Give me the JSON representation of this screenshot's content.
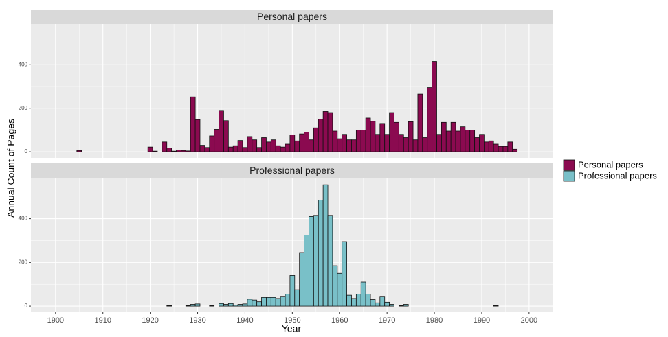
{
  "chart_data": {
    "type": "bar",
    "facet": true,
    "xlabel": "Year",
    "ylabel": "Annual Count of Pages",
    "x": [
      1905,
      1906,
      1907,
      1908,
      1909,
      1910,
      1911,
      1912,
      1913,
      1914,
      1915,
      1916,
      1917,
      1918,
      1919,
      1920,
      1921,
      1922,
      1923,
      1924,
      1925,
      1926,
      1927,
      1928,
      1929,
      1930,
      1931,
      1932,
      1933,
      1934,
      1935,
      1936,
      1937,
      1938,
      1939,
      1940,
      1941,
      1942,
      1943,
      1944,
      1945,
      1946,
      1947,
      1948,
      1949,
      1950,
      1951,
      1952,
      1953,
      1954,
      1955,
      1956,
      1957,
      1958,
      1959,
      1960,
      1961,
      1962,
      1963,
      1964,
      1965,
      1966,
      1967,
      1968,
      1969,
      1970,
      1971,
      1972,
      1973,
      1974,
      1975,
      1976,
      1977,
      1978,
      1979,
      1980,
      1981,
      1982,
      1983,
      1984,
      1985,
      1986,
      1987,
      1988,
      1989,
      1990,
      1991,
      1992,
      1993,
      1994,
      1995,
      1996,
      1997
    ],
    "series": [
      {
        "name": "Personal papers",
        "color": "#8b0a50",
        "values": [
          6,
          null,
          null,
          null,
          null,
          null,
          null,
          null,
          null,
          null,
          null,
          null,
          null,
          null,
          null,
          22,
          3,
          null,
          45,
          18,
          3,
          8,
          6,
          4,
          252,
          148,
          30,
          20,
          73,
          103,
          190,
          143,
          22,
          28,
          52,
          20,
          70,
          55,
          20,
          65,
          45,
          55,
          28,
          22,
          35,
          78,
          50,
          82,
          90,
          55,
          110,
          150,
          185,
          180,
          95,
          60,
          80,
          55,
          55,
          100,
          100,
          155,
          140,
          80,
          130,
          80,
          180,
          135,
          80,
          65,
          138,
          55,
          265,
          65,
          295,
          415,
          80,
          135,
          95,
          135,
          95,
          115,
          100,
          100,
          65,
          80,
          45,
          50,
          35,
          25,
          25,
          45,
          12
        ]
      },
      {
        "name": "Professional papers",
        "color": "#79c0c8",
        "values": [
          null,
          null,
          null,
          null,
          null,
          null,
          null,
          null,
          null,
          null,
          null,
          null,
          null,
          null,
          null,
          null,
          null,
          null,
          null,
          2,
          null,
          null,
          null,
          2,
          8,
          10,
          null,
          null,
          2,
          null,
          12,
          8,
          12,
          5,
          8,
          10,
          32,
          28,
          20,
          40,
          40,
          40,
          35,
          45,
          55,
          140,
          75,
          245,
          325,
          410,
          415,
          485,
          555,
          415,
          185,
          150,
          295,
          50,
          35,
          55,
          110,
          55,
          30,
          15,
          45,
          18,
          8,
          null,
          2,
          8,
          null,
          null,
          null,
          null,
          null,
          null,
          null,
          null,
          null,
          null,
          null,
          null,
          null,
          null,
          null,
          null,
          null,
          null,
          2,
          null,
          null,
          null,
          null
        ]
      }
    ],
    "xlim": [
      1894.8,
      2005.1
    ],
    "xticks": [
      1900,
      1910,
      1920,
      1930,
      1940,
      1950,
      1960,
      1970,
      1980,
      1990,
      2000
    ],
    "ylim": [
      -28,
      587
    ],
    "yticks": [
      0,
      200,
      400
    ],
    "grid": true,
    "legend": "right"
  }
}
